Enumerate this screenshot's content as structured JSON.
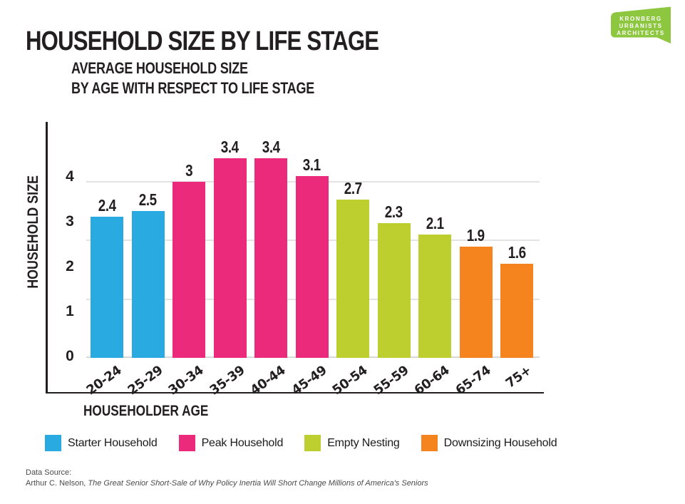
{
  "page": {
    "title": "HOUSEHOLD SIZE BY LIFE STAGE"
  },
  "logo": {
    "lines": [
      "KRONBERG",
      "URBANISTS",
      "ARCHITECTS"
    ],
    "color": "#8DC63F"
  },
  "chart_data": {
    "type": "bar",
    "title": "AVERAGE HOUSEHOLD SIZE BY AGE WITH RESPECT TO LIFE STAGE",
    "subtitle_lines": [
      "AVERAGE HOUSEHOLD SIZE",
      "BY AGE WITH RESPECT TO LIFE STAGE"
    ],
    "xlabel": "HOUSEHOLDER AGE",
    "ylabel": "HOUSEHOLD SIZE",
    "categories": [
      "20-24",
      "25-29",
      "30-34",
      "35-39",
      "40-44",
      "45-49",
      "50-54",
      "55-59",
      "60-64",
      "65-74",
      "75+"
    ],
    "values": [
      2.4,
      2.5,
      3,
      3.4,
      3.4,
      3.1,
      2.7,
      2.3,
      2.1,
      1.9,
      1.6
    ],
    "value_labels": [
      "2.4",
      "2.5",
      "3",
      "3.4",
      "3.4",
      "3.1",
      "2.7",
      "2.3",
      "2.1",
      "1.9",
      "1.6"
    ],
    "groups": [
      "starter",
      "starter",
      "peak",
      "peak",
      "peak",
      "peak",
      "empty",
      "empty",
      "empty",
      "downsizing",
      "downsizing"
    ],
    "group_colors": {
      "starter": "#29ABE2",
      "peak": "#EC2A7C",
      "empty": "#BDCF2E",
      "downsizing": "#F5841F"
    },
    "y_ticks": [
      "4",
      "3",
      "2",
      "1",
      "0"
    ],
    "ylim": [
      0,
      4
    ],
    "grid": true,
    "gridline_values": [
      1,
      2,
      3
    ],
    "legend_position": "bottom",
    "legend": [
      {
        "label": "Starter Household",
        "color": "#29ABE2",
        "stage": "starter"
      },
      {
        "label": "Peak Household",
        "color": "#EC2A7C",
        "stage": "peak"
      },
      {
        "label": "Empty Nesting",
        "color": "#BDCF2E",
        "stage": "empty"
      },
      {
        "label": "Downsizing Household",
        "color": "#F5841F",
        "stage": "downsizing"
      }
    ]
  },
  "source": {
    "label": "Data Source:",
    "author": "Arthur C. Nelson, ",
    "publication": "The Great Senior Short-Sale of Why Policy Inertia Will Short Change Millions of America's Seniors"
  }
}
